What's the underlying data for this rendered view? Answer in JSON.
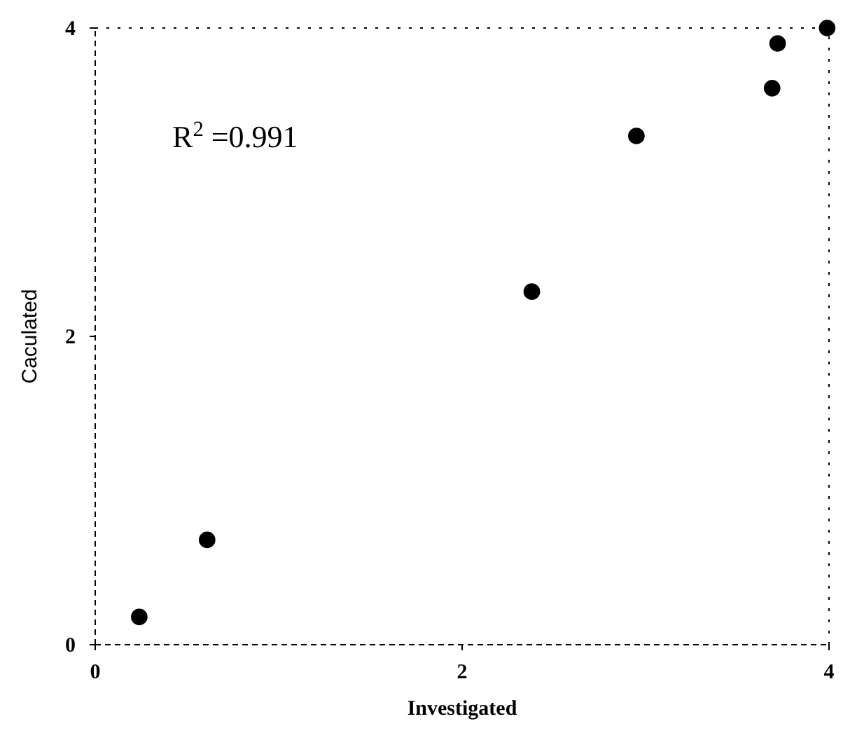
{
  "chart_data": {
    "type": "scatter",
    "xlabel": "Investigated",
    "ylabel": "Caculated",
    "x": [
      0.24,
      0.61,
      2.38,
      2.95,
      3.69,
      3.72,
      3.99
    ],
    "values": [
      0.18,
      0.68,
      2.29,
      3.3,
      3.61,
      3.9,
      4.0
    ],
    "color": "#000000",
    "marker": "circle",
    "xlim": [
      0,
      4
    ],
    "ylim": [
      0,
      4
    ],
    "xticks": [
      0,
      2,
      4
    ],
    "yticks": [
      0,
      2,
      4
    ],
    "annotations": [
      "R$^{2}$ =0.991"
    ]
  }
}
